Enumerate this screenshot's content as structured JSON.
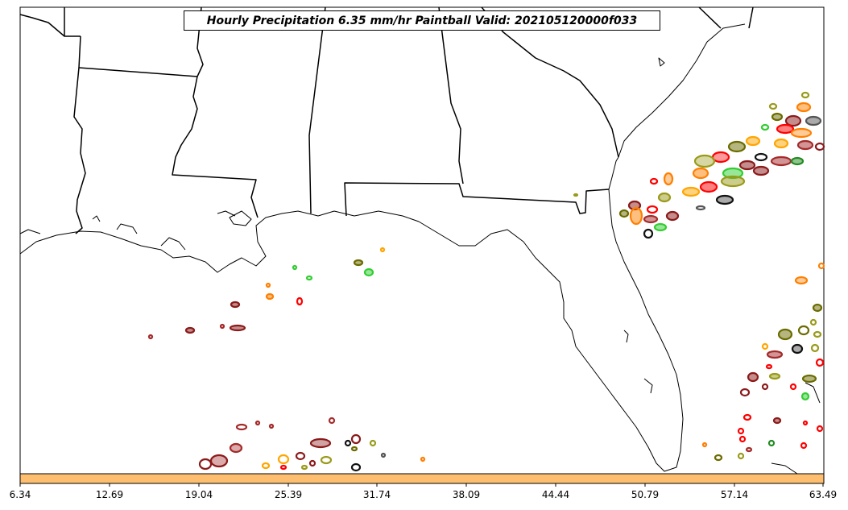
{
  "title": "Hourly Precipitation 6.35 mm/hr Paintball Valid: 202105120000f033",
  "colorbar": {
    "color": "#fdbf6f",
    "ticks": [
      "6.34",
      "12.69",
      "19.04",
      "25.39",
      "31.74",
      "38.09",
      "44.44",
      "50.79",
      "57.14",
      "63.49"
    ]
  },
  "member_colors": [
    "#8b1a1a",
    "#a52a2a",
    "#ff0000",
    "#ff7f00",
    "#ffa500",
    "#32cd32",
    "#228b22",
    "#6b6b00",
    "#9a9a1a",
    "#111111",
    "#555555"
  ]
}
